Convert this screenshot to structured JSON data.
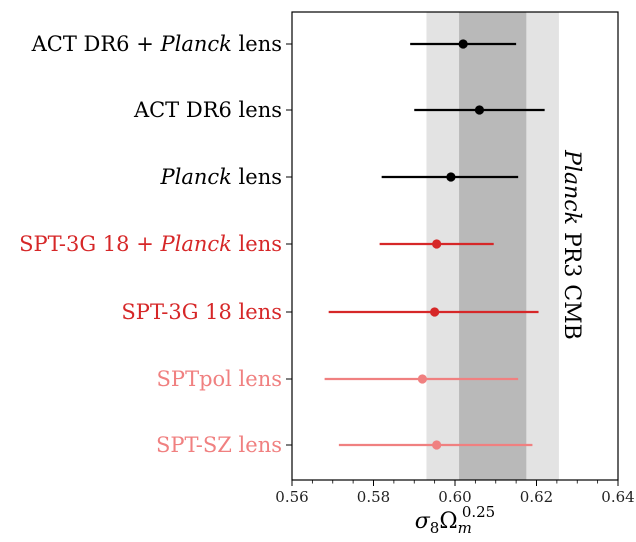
{
  "chart_data": {
    "type": "scatter",
    "xlabel": "σ8Ωm^0.25",
    "xlabel_base": "σ",
    "xlabel_sub1": "8",
    "xlabel_mid": "Ω",
    "xlabel_sub2": "m",
    "xlabel_sup": "0.25",
    "xlim": [
      0.56,
      0.64
    ],
    "x_ticks": [
      "0.56",
      "0.58",
      "0.60",
      "0.62",
      "0.64"
    ],
    "x_tick_values": [
      0.56,
      0.58,
      0.6,
      0.62,
      0.64
    ],
    "grid": false,
    "band": {
      "label_italic": "Planck",
      "label_rest": " PR3 CMB",
      "outer": [
        0.593,
        0.6255
      ],
      "inner": [
        0.601,
        0.6175
      ],
      "outer_color": "#e3e3e3",
      "inner_color": "#b9b9b9"
    },
    "series": [
      {
        "parts": [
          {
            "t": "ACT DR6 + ",
            "i": false
          },
          {
            "t": "Planck",
            "i": true
          },
          {
            "t": " lens",
            "i": false
          }
        ],
        "value": 0.602,
        "low": 0.589,
        "high": 0.615,
        "color": "#000000"
      },
      {
        "parts": [
          {
            "t": "ACT DR6 lens",
            "i": false
          }
        ],
        "value": 0.606,
        "low": 0.59,
        "high": 0.622,
        "color": "#000000"
      },
      {
        "parts": [
          {
            "t": "Planck",
            "i": true
          },
          {
            "t": " lens",
            "i": false
          }
        ],
        "value": 0.599,
        "low": 0.582,
        "high": 0.6155,
        "color": "#000000"
      },
      {
        "parts": [
          {
            "t": "SPT-3G 18 + ",
            "i": false
          },
          {
            "t": "Planck",
            "i": true
          },
          {
            "t": " lens",
            "i": false
          }
        ],
        "value": 0.5955,
        "low": 0.5815,
        "high": 0.6095,
        "color": "#d62728"
      },
      {
        "parts": [
          {
            "t": "SPT-3G 18 lens",
            "i": false
          }
        ],
        "value": 0.595,
        "low": 0.569,
        "high": 0.6205,
        "color": "#d62728"
      },
      {
        "parts": [
          {
            "t": "SPTpol lens",
            "i": false
          }
        ],
        "value": 0.592,
        "low": 0.568,
        "high": 0.6155,
        "color": "#f08080"
      },
      {
        "parts": [
          {
            "t": "SPT-SZ lens",
            "i": false
          }
        ],
        "value": 0.5955,
        "low": 0.5715,
        "high": 0.619,
        "color": "#f08080"
      }
    ]
  }
}
